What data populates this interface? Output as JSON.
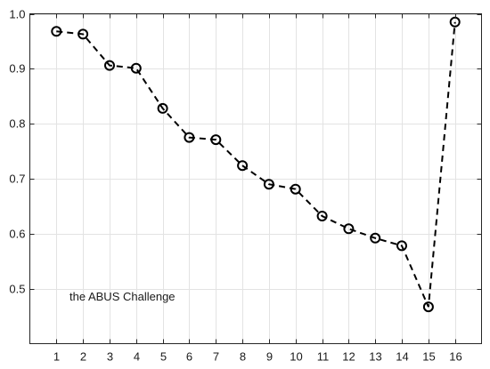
{
  "chart_data": {
    "type": "line",
    "title": "",
    "xlabel": "",
    "ylabel": "",
    "x": [
      1,
      2,
      3,
      4,
      5,
      6,
      7,
      8,
      9,
      10,
      11,
      12,
      13,
      14,
      15,
      16
    ],
    "series": [
      {
        "values": [
          0.968,
          0.963,
          0.906,
          0.901,
          0.828,
          0.775,
          0.771,
          0.724,
          0.69,
          0.681,
          0.632,
          0.609,
          0.592,
          0.578,
          0.467,
          0.985
        ],
        "line_style": "dashed",
        "marker": "circle",
        "color": "#000000"
      }
    ],
    "xlim": [
      0,
      17
    ],
    "ylim": [
      0.4,
      1.0
    ],
    "xticks": [
      "1",
      "2",
      "3",
      "4",
      "5",
      "6",
      "7",
      "8",
      "9",
      "10",
      "11",
      "12",
      "13",
      "14",
      "15",
      "16"
    ],
    "yticks": [
      "0.5",
      "0.6",
      "0.7",
      "0.8",
      "0.9",
      "1.0"
    ],
    "grid": true,
    "annotation": "the ABUS Challenge"
  }
}
